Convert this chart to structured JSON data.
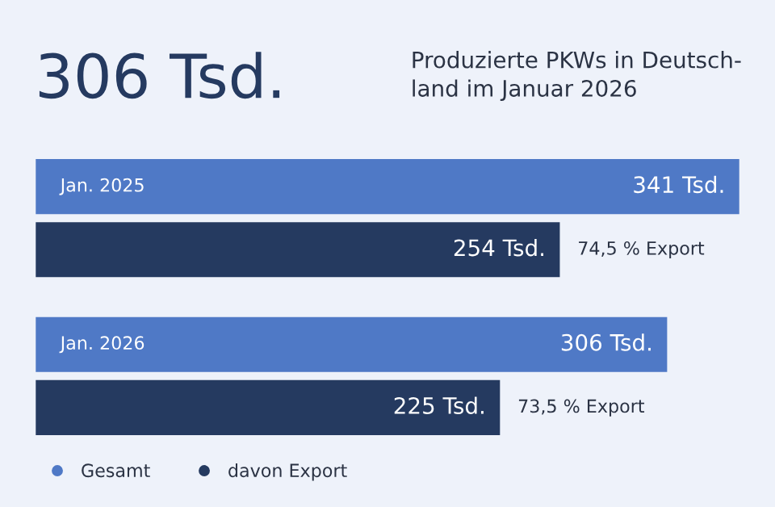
{
  "chart_data": {
    "type": "bar",
    "orientation": "horizontal",
    "title": "306 Tsd.",
    "subtitle": "Produzierte PKWs in Deutsch-\nland im Januar 2026",
    "categories": [
      "Jan. 2025",
      "Jan. 2026"
    ],
    "series": [
      {
        "name": "Gesamt",
        "color": "#4f79c6",
        "values": [
          341,
          306
        ],
        "value_labels": [
          "341 Tsd.",
          "306 Tsd."
        ]
      },
      {
        "name": "davon Export",
        "color": "#253a60",
        "values": [
          254,
          225
        ],
        "value_labels": [
          "254 Tsd.",
          "225 Tsd."
        ]
      }
    ],
    "annotations": [
      {
        "text": "74,5 % Export",
        "x": 254,
        "y": "Jan. 2025"
      },
      {
        "text": "73,5 % Export",
        "x": 225,
        "y": "Jan. 2026"
      }
    ],
    "tick_labels": false,
    "legend": "bottom left"
  }
}
